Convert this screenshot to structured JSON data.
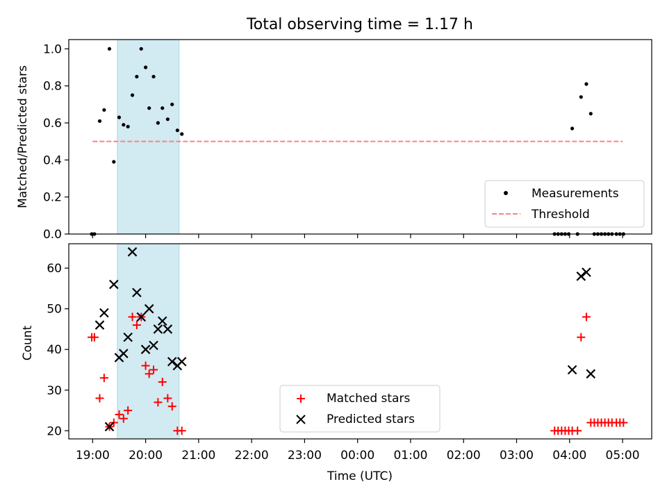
{
  "chart_data": [
    {
      "type": "scatter",
      "title": "Total observing time = 1.17 h",
      "ylabel": "Matched/Predicted stars",
      "ylim": [
        0,
        1.05
      ],
      "yticks": [
        0.0,
        0.2,
        0.4,
        0.6,
        0.8,
        1.0
      ],
      "ytick_labels": [
        "0.0",
        "0.2",
        "0.4",
        "0.6",
        "0.8",
        "1.0"
      ],
      "grid": false,
      "legend_position": "bottom-right",
      "highlight_band": {
        "start": "19:28",
        "end": "20:38",
        "color": "#add8e6"
      },
      "threshold": {
        "name": "Threshold",
        "value": 0.5,
        "x_start": "19:00",
        "x_end": "05:00",
        "color": "#ff8080",
        "style": "dashed"
      },
      "series": [
        {
          "name": "Measurements",
          "marker": "dot",
          "color": "#000000",
          "points": [
            [
              "18:59",
              0.0
            ],
            [
              "19:02",
              0.0
            ],
            [
              "19:08",
              0.61
            ],
            [
              "19:13",
              0.67
            ],
            [
              "19:19",
              1.0
            ],
            [
              "19:24",
              0.39
            ],
            [
              "19:30",
              0.63
            ],
            [
              "19:35",
              0.59
            ],
            [
              "19:40",
              0.58
            ],
            [
              "19:45",
              0.75
            ],
            [
              "19:50",
              0.85
            ],
            [
              "19:55",
              1.0
            ],
            [
              "20:00",
              0.9
            ],
            [
              "20:04",
              0.68
            ],
            [
              "20:09",
              0.85
            ],
            [
              "20:14",
              0.6
            ],
            [
              "20:19",
              0.68
            ],
            [
              "20:25",
              0.62
            ],
            [
              "20:30",
              0.7
            ],
            [
              "20:36",
              0.56
            ],
            [
              "20:41",
              0.54
            ],
            [
              "03:43",
              0.0
            ],
            [
              "03:47",
              0.0
            ],
            [
              "03:51",
              0.0
            ],
            [
              "03:55",
              0.0
            ],
            [
              "03:59",
              0.0
            ],
            [
              "04:03",
              0.57
            ],
            [
              "04:09",
              0.0
            ],
            [
              "04:13",
              0.74
            ],
            [
              "04:19",
              0.81
            ],
            [
              "04:24",
              0.65
            ],
            [
              "04:28",
              0.0
            ],
            [
              "04:32",
              0.0
            ],
            [
              "04:36",
              0.0
            ],
            [
              "04:40",
              0.0
            ],
            [
              "04:44",
              0.0
            ],
            [
              "04:48",
              0.0
            ],
            [
              "04:53",
              0.0
            ],
            [
              "04:57",
              0.0
            ],
            [
              "05:01",
              0.0
            ]
          ]
        }
      ]
    },
    {
      "type": "scatter",
      "xlabel": "Time (UTC)",
      "ylabel": "Count",
      "ylim": [
        18,
        66
      ],
      "yticks": [
        20,
        30,
        40,
        50,
        60
      ],
      "ytick_labels": [
        "20",
        "30",
        "40",
        "50",
        "60"
      ],
      "xlim": [
        "18:33",
        "05:33"
      ],
      "xticks": [
        "19:00",
        "20:00",
        "21:00",
        "22:00",
        "23:00",
        "00:00",
        "01:00",
        "02:00",
        "03:00",
        "04:00",
        "05:00"
      ],
      "grid": false,
      "legend_position": "lower center",
      "highlight_band": {
        "start": "19:28",
        "end": "20:38",
        "color": "#add8e6"
      },
      "series": [
        {
          "name": "Matched stars",
          "marker": "plus",
          "color": "#ff0000",
          "points": [
            [
              "18:59",
              43
            ],
            [
              "19:02",
              43
            ],
            [
              "19:08",
              28
            ],
            [
              "19:13",
              33
            ],
            [
              "19:19",
              21
            ],
            [
              "19:24",
              22
            ],
            [
              "19:30",
              24
            ],
            [
              "19:35",
              23
            ],
            [
              "19:40",
              25
            ],
            [
              "19:45",
              48
            ],
            [
              "19:50",
              46
            ],
            [
              "19:55",
              48
            ],
            [
              "20:00",
              36
            ],
            [
              "20:04",
              34
            ],
            [
              "20:09",
              35
            ],
            [
              "20:14",
              27
            ],
            [
              "20:19",
              32
            ],
            [
              "20:25",
              28
            ],
            [
              "20:30",
              26
            ],
            [
              "20:36",
              20
            ],
            [
              "20:41",
              20
            ],
            [
              "03:43",
              20
            ],
            [
              "03:47",
              20
            ],
            [
              "03:51",
              20
            ],
            [
              "03:55",
              20
            ],
            [
              "03:59",
              20
            ],
            [
              "04:03",
              20
            ],
            [
              "04:09",
              20
            ],
            [
              "04:13",
              43
            ],
            [
              "04:19",
              48
            ],
            [
              "04:24",
              22
            ],
            [
              "04:28",
              22
            ],
            [
              "04:32",
              22
            ],
            [
              "04:36",
              22
            ],
            [
              "04:40",
              22
            ],
            [
              "04:44",
              22
            ],
            [
              "04:48",
              22
            ],
            [
              "04:53",
              22
            ],
            [
              "04:57",
              22
            ],
            [
              "05:01",
              22
            ]
          ]
        },
        {
          "name": "Predicted stars",
          "marker": "x",
          "color": "#000000",
          "points": [
            [
              "19:08",
              46
            ],
            [
              "19:13",
              49
            ],
            [
              "19:19",
              21
            ],
            [
              "19:24",
              56
            ],
            [
              "19:30",
              38
            ],
            [
              "19:35",
              39
            ],
            [
              "19:40",
              43
            ],
            [
              "19:45",
              64
            ],
            [
              "19:50",
              54
            ],
            [
              "19:55",
              48
            ],
            [
              "20:00",
              40
            ],
            [
              "20:04",
              50
            ],
            [
              "20:09",
              41
            ],
            [
              "20:14",
              45
            ],
            [
              "20:19",
              47
            ],
            [
              "20:25",
              45
            ],
            [
              "20:30",
              37
            ],
            [
              "20:36",
              36
            ],
            [
              "20:41",
              37
            ],
            [
              "04:03",
              35
            ],
            [
              "04:13",
              58
            ],
            [
              "04:19",
              59
            ],
            [
              "04:24",
              34
            ]
          ]
        }
      ]
    }
  ]
}
